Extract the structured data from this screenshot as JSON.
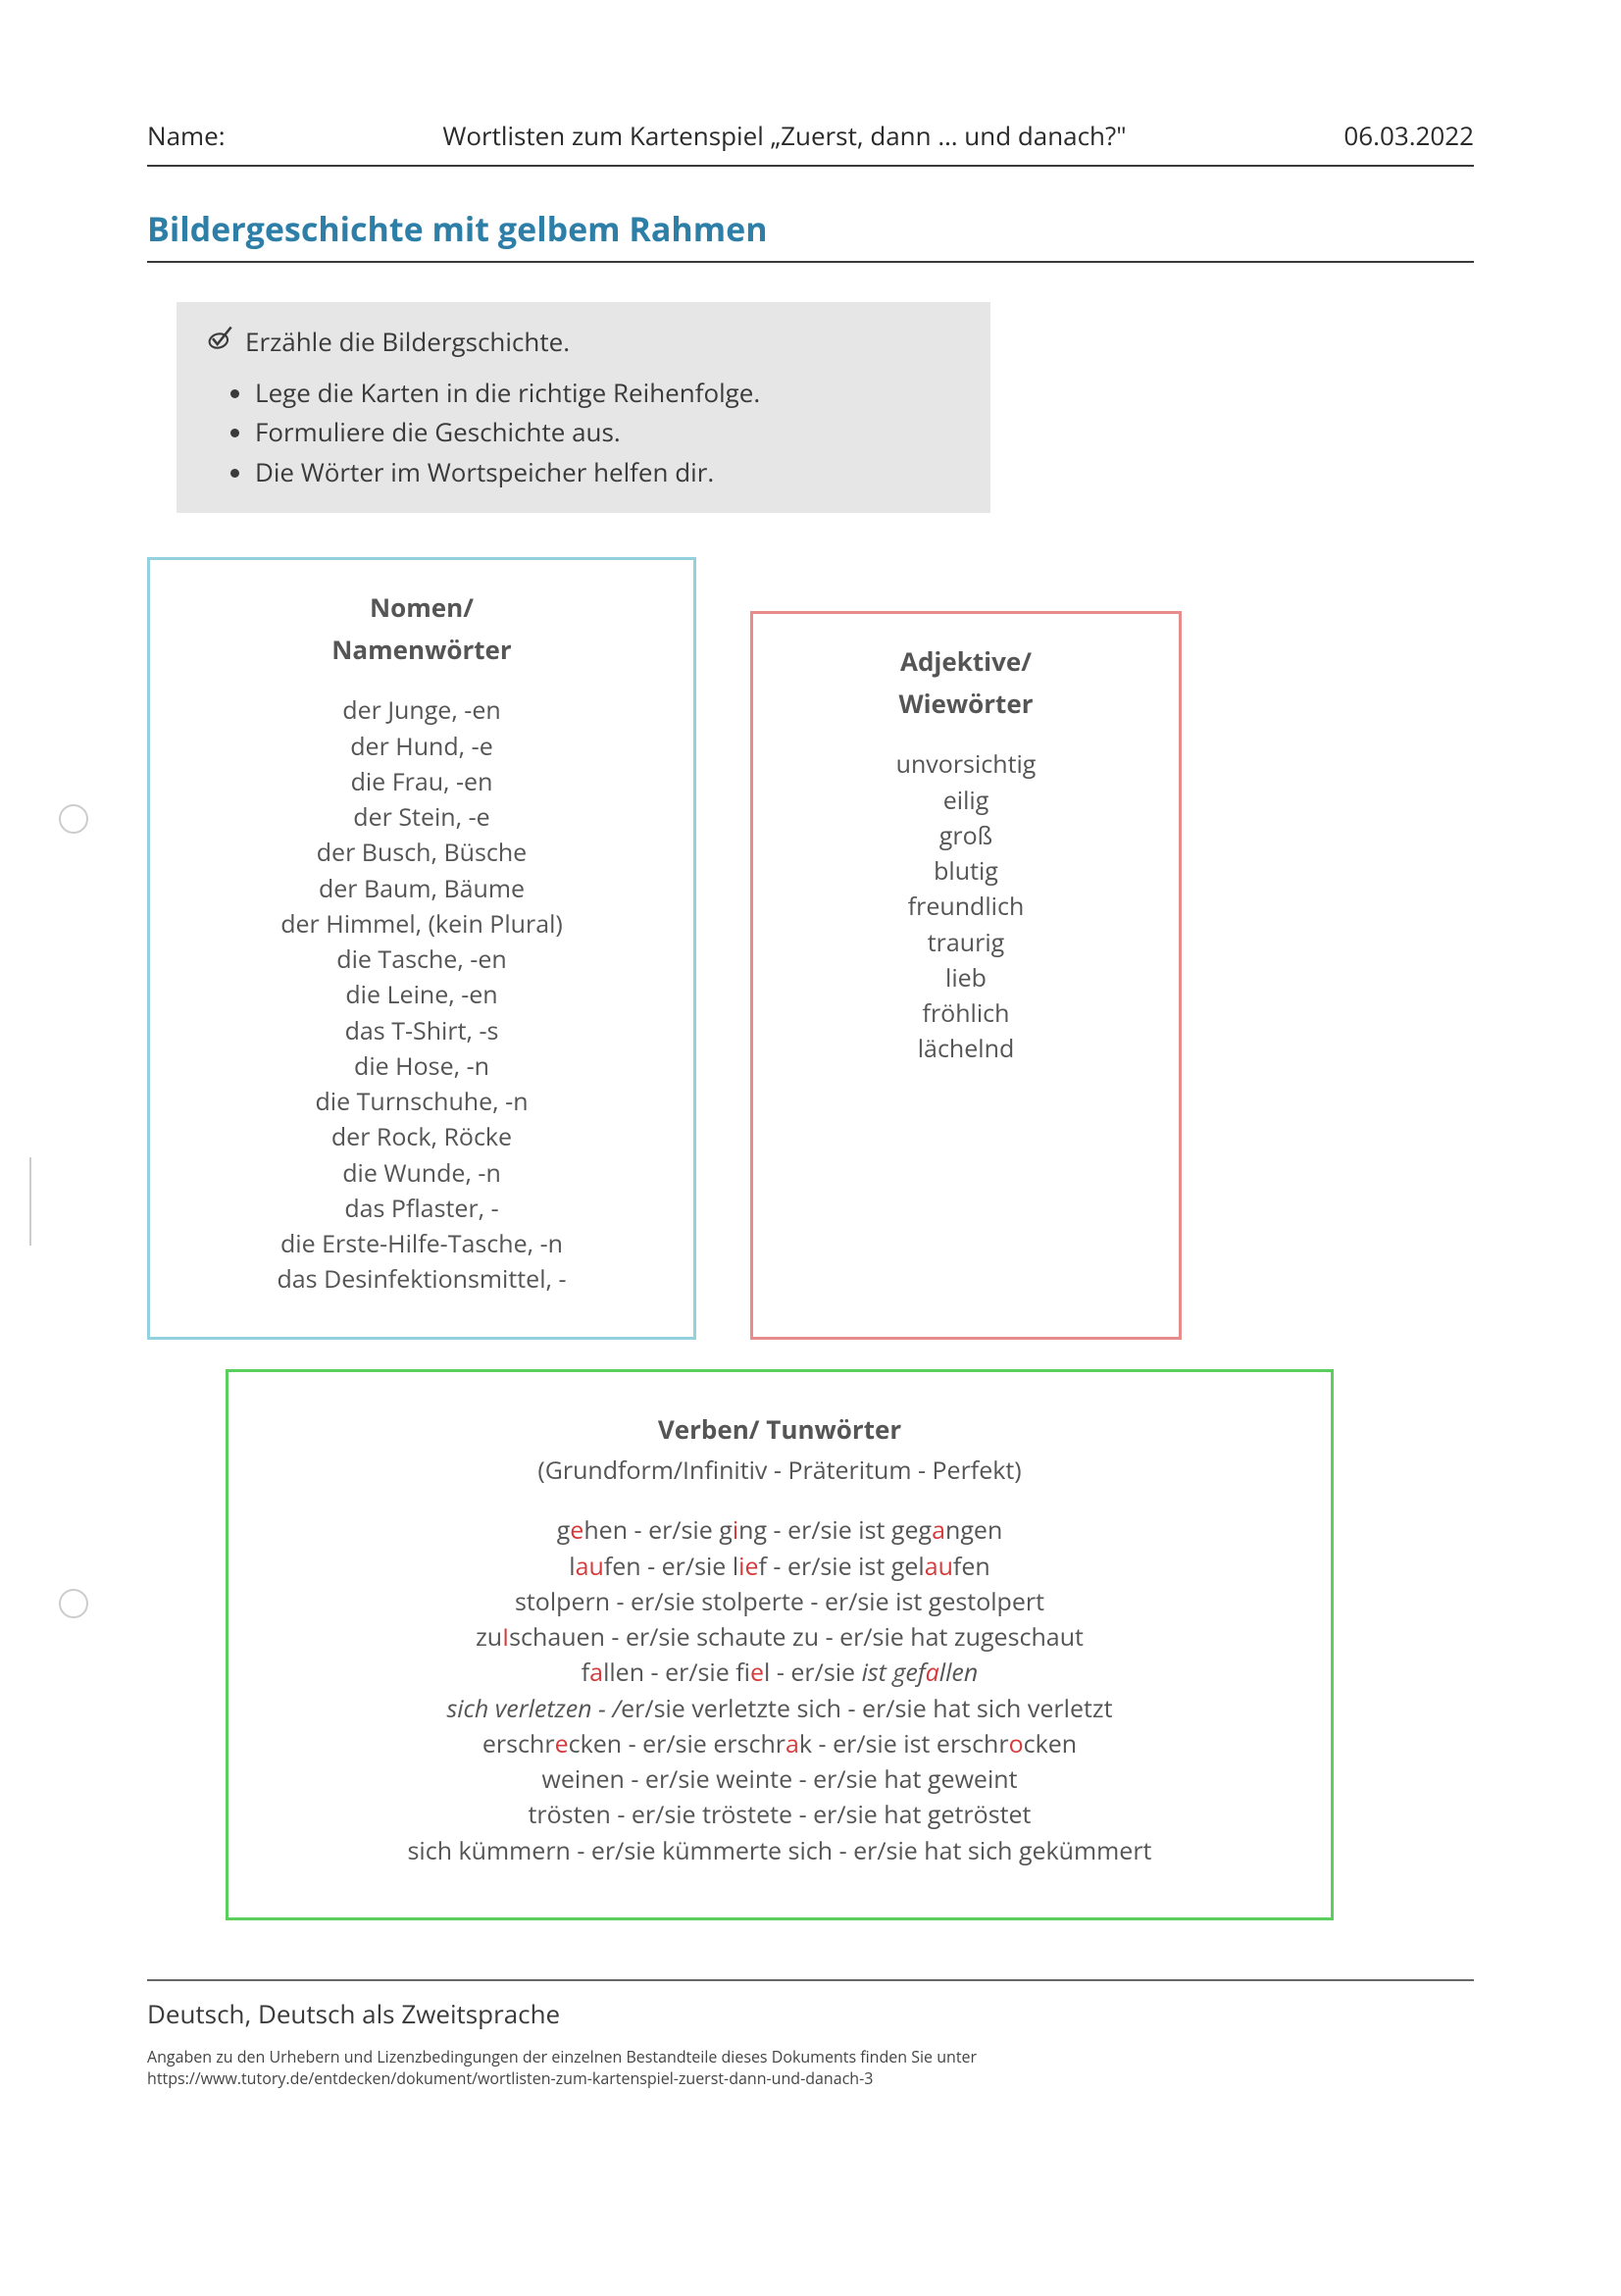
{
  "header": {
    "name_label": "Name:",
    "title": "Wortlisten zum Kartenspiel „Zuerst, dann … und danach?\"",
    "date": "06.03.2022"
  },
  "section_title": "Bildergeschichte mit gelbem Rahmen",
  "instructions": {
    "heading": "Erzähle die Bildergschichte.",
    "items": [
      "Lege die Karten in die richtige Reihenfolge.",
      "Formuliere die Geschichte aus.",
      "Die Wörter im Wortspeicher helfen dir."
    ]
  },
  "nomen": {
    "heading1": "Nomen/",
    "heading2": "Namenwörter",
    "border_color": "#93d1df",
    "items": [
      "der Junge, -en",
      "der Hund, -e",
      "die Frau, -en",
      "der Stein, -e",
      "der Busch, Büsche",
      "der Baum, Bäume",
      "der Himmel, (kein Plural)",
      "die Tasche, -en",
      "die Leine, -en",
      "das T-Shirt, -s",
      "die Hose, -n",
      "die Turnschuhe, -n",
      "der Rock, Röcke",
      "die Wunde, -n",
      "das Pflaster, -",
      "die Erste-Hilfe-Tasche, -n",
      "das Desinfektionsmittel, -"
    ]
  },
  "adjektive": {
    "heading1": "Adjektive/",
    "heading2": "Wiewörter",
    "border_color": "#e88b8b",
    "items": [
      "unvorsichtig",
      "eilig",
      "groß",
      "blutig",
      "freundlich",
      "traurig",
      "lieb",
      "fröhlich",
      "lächelnd"
    ]
  },
  "verben": {
    "heading": "Verben/ Tunwörter",
    "sub": "(Grundform/Infinitiv - Präteritum - Perfekt)",
    "border_color": "#5bcf5b"
  },
  "footer": {
    "subject": "Deutsch, Deutsch als Zweitsprache",
    "attrib": "Angaben zu den Urhebern und Lizenzbedingungen der einzelnen Bestandteile dieses Dokuments finden Sie unter",
    "url": "https://www.tutory.de/entdecken/dokument/wortlisten-zum-kartenspiel-zuerst-dann-und-danach-3"
  },
  "colors": {
    "title_color": "#2d7fa8",
    "text": "#3a3a3a",
    "highlight": "#d63a3a"
  }
}
